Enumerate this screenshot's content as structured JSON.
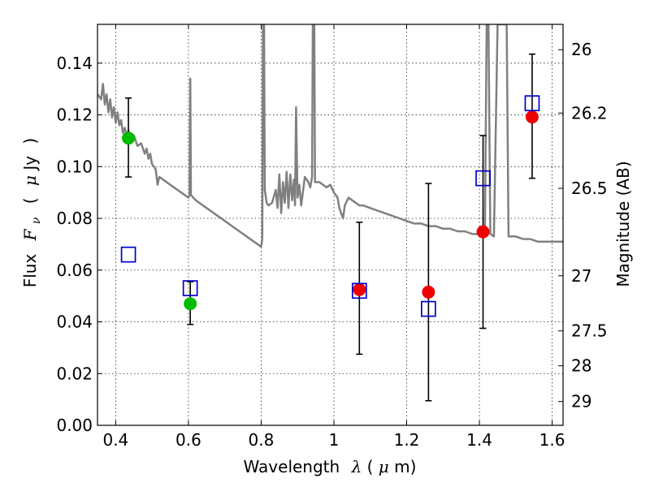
{
  "chart_data": {
    "type": "scatter",
    "xlabel_text": "Wavelength",
    "xlabel_symbol": "λ",
    "xlabel_unit_open": " (",
    "xlabel_unit_mu": "μ",
    "xlabel_unit_rest": "m)",
    "ylabel_text": "Flux",
    "ylabel_symbol": "F",
    "ylabel_sub": "ν",
    "ylabel_unit_open": "(",
    "ylabel_unit_mu": "μ",
    "ylabel_unit_rest": "Jy",
    "ylabel_unit_close": ")",
    "y2label": "Magnitude (AB)",
    "xlim": [
      0.35,
      1.63
    ],
    "ylim": [
      0.0,
      0.155
    ],
    "grid": true,
    "x_ticks": [
      0.4,
      0.6,
      0.8,
      1.0,
      1.2,
      1.4,
      1.6
    ],
    "x_tick_labels": [
      "0.4",
      "0.6",
      "0.8",
      "1",
      "1.2",
      "1.4",
      "1.6"
    ],
    "y_ticks": [
      0.0,
      0.02,
      0.04,
      0.06,
      0.08,
      0.1,
      0.12,
      0.14
    ],
    "y_tick_labels": [
      "0.00",
      "0.02",
      "0.04",
      "0.06",
      "0.08",
      "0.10",
      "0.12",
      "0.14"
    ],
    "y2_ticks": [
      {
        "label": "26",
        "flux": 0.1452
      },
      {
        "label": "26.2",
        "flux": 0.1207
      },
      {
        "label": "26.5",
        "flux": 0.0916
      },
      {
        "label": "27",
        "flux": 0.0578
      },
      {
        "label": "27.5",
        "flux": 0.0365
      },
      {
        "label": "28",
        "flux": 0.023
      },
      {
        "label": "29",
        "flux": 0.0092
      }
    ],
    "series": [
      {
        "kind": "line",
        "color": "#808080",
        "points": [
          [
            0.35,
            0.128
          ],
          [
            0.36,
            0.126
          ],
          [
            0.365,
            0.132
          ],
          [
            0.37,
            0.124
          ],
          [
            0.375,
            0.128
          ],
          [
            0.38,
            0.121
          ],
          [
            0.385,
            0.126
          ],
          [
            0.39,
            0.119
          ],
          [
            0.395,
            0.123
          ],
          [
            0.4,
            0.117
          ],
          [
            0.405,
            0.121
          ],
          [
            0.41,
            0.116
          ],
          [
            0.415,
            0.118
          ],
          [
            0.42,
            0.113
          ],
          [
            0.425,
            0.115
          ],
          [
            0.43,
            0.112
          ],
          [
            0.435,
            0.114
          ],
          [
            0.44,
            0.11
          ],
          [
            0.45,
            0.112
          ],
          [
            0.46,
            0.108
          ],
          [
            0.47,
            0.109
          ],
          [
            0.48,
            0.105
          ],
          [
            0.485,
            0.107
          ],
          [
            0.49,
            0.103
          ],
          [
            0.495,
            0.105
          ],
          [
            0.5,
            0.101
          ],
          [
            0.51,
            0.099
          ],
          [
            0.515,
            0.093
          ],
          [
            0.52,
            0.096
          ],
          [
            0.53,
            0.095
          ],
          [
            0.54,
            0.094
          ],
          [
            0.55,
            0.093
          ],
          [
            0.56,
            0.092
          ],
          [
            0.57,
            0.091
          ],
          [
            0.58,
            0.09
          ],
          [
            0.59,
            0.089
          ],
          [
            0.6,
            0.088
          ],
          [
            0.603,
            0.089
          ],
          [
            0.605,
            0.134
          ],
          [
            0.607,
            0.089
          ],
          [
            0.62,
            0.087
          ],
          [
            0.64,
            0.085
          ],
          [
            0.66,
            0.083
          ],
          [
            0.68,
            0.081
          ],
          [
            0.7,
            0.079
          ],
          [
            0.72,
            0.077
          ],
          [
            0.74,
            0.075
          ],
          [
            0.76,
            0.073
          ],
          [
            0.78,
            0.071
          ],
          [
            0.79,
            0.07
          ],
          [
            0.8,
            0.069
          ],
          [
            0.803,
            0.072
          ],
          [
            0.805,
            0.155
          ],
          [
            0.808,
            0.155
          ],
          [
            0.81,
            0.091
          ],
          [
            0.815,
            0.086
          ],
          [
            0.82,
            0.085
          ],
          [
            0.83,
            0.086
          ],
          [
            0.84,
            0.091
          ],
          [
            0.845,
            0.084
          ],
          [
            0.85,
            0.097
          ],
          [
            0.855,
            0.082
          ],
          [
            0.86,
            0.094
          ],
          [
            0.865,
            0.086
          ],
          [
            0.87,
            0.098
          ],
          [
            0.875,
            0.084
          ],
          [
            0.88,
            0.097
          ],
          [
            0.885,
            0.087
          ],
          [
            0.89,
            0.095
          ],
          [
            0.893,
            0.085
          ],
          [
            0.896,
            0.123
          ],
          [
            0.9,
            0.088
          ],
          [
            0.905,
            0.093
          ],
          [
            0.91,
            0.085
          ],
          [
            0.92,
            0.096
          ],
          [
            0.93,
            0.094
          ],
          [
            0.935,
            0.092
          ],
          [
            0.94,
            0.096
          ],
          [
            0.942,
            0.155
          ],
          [
            0.946,
            0.155
          ],
          [
            0.948,
            0.094
          ],
          [
            0.96,
            0.094
          ],
          [
            0.97,
            0.093
          ],
          [
            0.98,
            0.092
          ],
          [
            0.99,
            0.093
          ],
          [
            1.0,
            0.09
          ],
          [
            1.01,
            0.088
          ],
          [
            1.015,
            0.084
          ],
          [
            1.02,
            0.082
          ],
          [
            1.025,
            0.08
          ],
          [
            1.03,
            0.085
          ],
          [
            1.04,
            0.088
          ],
          [
            1.05,
            0.087
          ],
          [
            1.06,
            0.086
          ],
          [
            1.07,
            0.085
          ],
          [
            1.08,
            0.085
          ],
          [
            1.1,
            0.084
          ],
          [
            1.12,
            0.083
          ],
          [
            1.14,
            0.082
          ],
          [
            1.16,
            0.081
          ],
          [
            1.18,
            0.08
          ],
          [
            1.2,
            0.079
          ],
          [
            1.22,
            0.078
          ],
          [
            1.24,
            0.078
          ],
          [
            1.26,
            0.077
          ],
          [
            1.28,
            0.077
          ],
          [
            1.3,
            0.076
          ],
          [
            1.32,
            0.076
          ],
          [
            1.34,
            0.075
          ],
          [
            1.36,
            0.075
          ],
          [
            1.38,
            0.074
          ],
          [
            1.4,
            0.074
          ],
          [
            1.415,
            0.074
          ],
          [
            1.42,
            0.155
          ],
          [
            1.425,
            0.155
          ],
          [
            1.43,
            0.074
          ],
          [
            1.44,
            0.073
          ],
          [
            1.45,
            0.155
          ],
          [
            1.455,
            0.155
          ],
          [
            1.46,
            0.155
          ],
          [
            1.47,
            0.155
          ],
          [
            1.475,
            0.155
          ],
          [
            1.48,
            0.073
          ],
          [
            1.5,
            0.073
          ],
          [
            1.52,
            0.072
          ],
          [
            1.54,
            0.072
          ],
          [
            1.56,
            0.071
          ],
          [
            1.58,
            0.071
          ],
          [
            1.6,
            0.071
          ],
          [
            1.63,
            0.071
          ]
        ]
      },
      {
        "kind": "points",
        "marker": "circle",
        "color": "#00bb00",
        "x": [
          0.435,
          0.605
        ],
        "y": [
          0.111,
          0.047
        ]
      },
      {
        "kind": "points",
        "marker": "circle",
        "color": "#ee0000",
        "x": [
          1.07,
          1.26,
          1.41,
          1.545
        ],
        "y": [
          0.0525,
          0.0515,
          0.0748,
          0.1192
        ]
      },
      {
        "kind": "points",
        "marker": "square",
        "color": "#0000cc",
        "x": [
          0.435,
          0.605,
          1.07,
          1.26,
          1.41,
          1.545
        ],
        "y": [
          0.066,
          0.053,
          0.052,
          0.045,
          0.0955,
          0.1245
        ]
      },
      {
        "kind": "errorbars",
        "color": "#000000",
        "x": [
          0.435,
          0.605,
          1.07,
          1.26,
          1.41,
          1.545
        ],
        "y_low": [
          0.096,
          0.039,
          0.0275,
          0.0095,
          0.0375,
          0.0955
        ],
        "y_high": [
          0.1265,
          0.0555,
          0.0785,
          0.0935,
          0.112,
          0.1435
        ]
      }
    ]
  }
}
